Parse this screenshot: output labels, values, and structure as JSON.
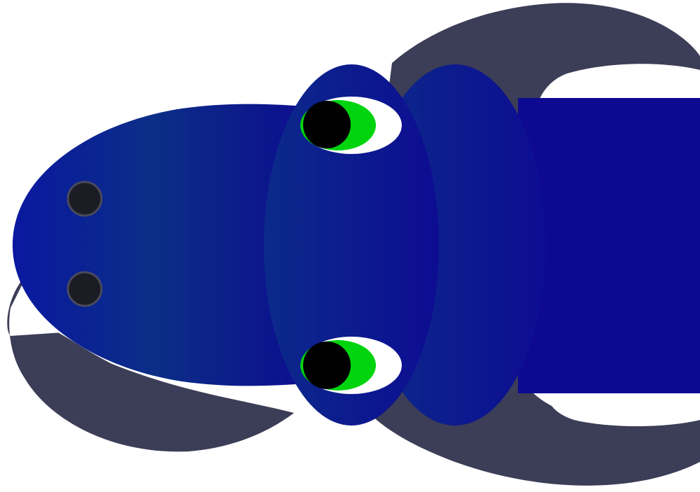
{
  "scene": {
    "subject": "snake-head-top-view",
    "colors": {
      "background": "#ffffff",
      "shadow": "#3c3d57",
      "body_dark": "#0d0990",
      "head_mid": "#0b2e86",
      "head_edge": "#0a18a0",
      "eye_white": "#ffffff",
      "iris": "#00d40f",
      "pupil": "#000000",
      "nostril": "#1c1c24",
      "nostril_ring": "#4a4a5c"
    }
  }
}
